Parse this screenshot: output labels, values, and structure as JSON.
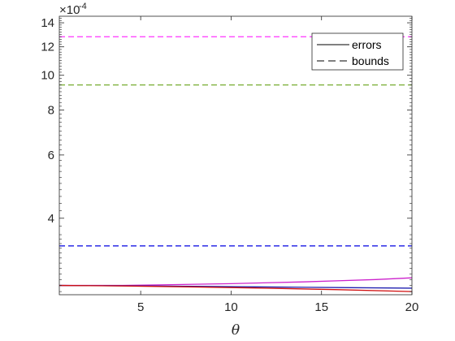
{
  "chart_data": {
    "type": "line",
    "title": "",
    "xlabel": "θ",
    "ylabel": "",
    "x_ticks": [
      5,
      10,
      15,
      20
    ],
    "y_ticks": [
      4,
      6,
      8,
      10,
      12,
      14
    ],
    "y_exponent": {
      "base": "×10",
      "power": "-4"
    },
    "xlim": [
      0.5,
      20
    ],
    "ylim": [
      2.45,
      14.6
    ],
    "y_scale": "log",
    "y_multiplier": 0.0001,
    "grid": false,
    "legend": {
      "placement": "top-right",
      "entries": [
        {
          "label": "errors",
          "style": "solid"
        },
        {
          "label": "bounds",
          "style": "dashed"
        }
      ]
    },
    "series": [
      {
        "kind": "bound",
        "color": "#FF33FF",
        "style": "dashed",
        "x": [
          0.5,
          20
        ],
        "y": [
          12.8,
          12.8
        ]
      },
      {
        "kind": "bound",
        "color": "#77AC30",
        "style": "dashed",
        "x": [
          0.5,
          20
        ],
        "y": [
          9.4,
          9.4
        ]
      },
      {
        "kind": "bound",
        "color": "#0000E0",
        "style": "dashed",
        "x": [
          0.5,
          20
        ],
        "y": [
          3.35,
          3.35
        ]
      },
      {
        "kind": "error",
        "color": "#CC22CC",
        "style": "solid",
        "x": [
          0.5,
          2,
          4,
          6,
          8,
          10,
          12,
          14,
          16,
          18,
          20
        ],
        "y": [
          2.6,
          2.6,
          2.6,
          2.61,
          2.62,
          2.63,
          2.645,
          2.66,
          2.68,
          2.7,
          2.73
        ]
      },
      {
        "kind": "error",
        "color": "#2020B0",
        "style": "solid",
        "x": [
          0.5,
          4,
          8,
          12,
          16,
          20
        ],
        "y": [
          2.6,
          2.595,
          2.585,
          2.575,
          2.565,
          2.555
        ]
      },
      {
        "kind": "error",
        "color": "#D01010",
        "style": "solid",
        "x": [
          0.5,
          4,
          8,
          12,
          16,
          20
        ],
        "y": [
          2.6,
          2.592,
          2.575,
          2.555,
          2.53,
          2.5
        ]
      }
    ]
  }
}
